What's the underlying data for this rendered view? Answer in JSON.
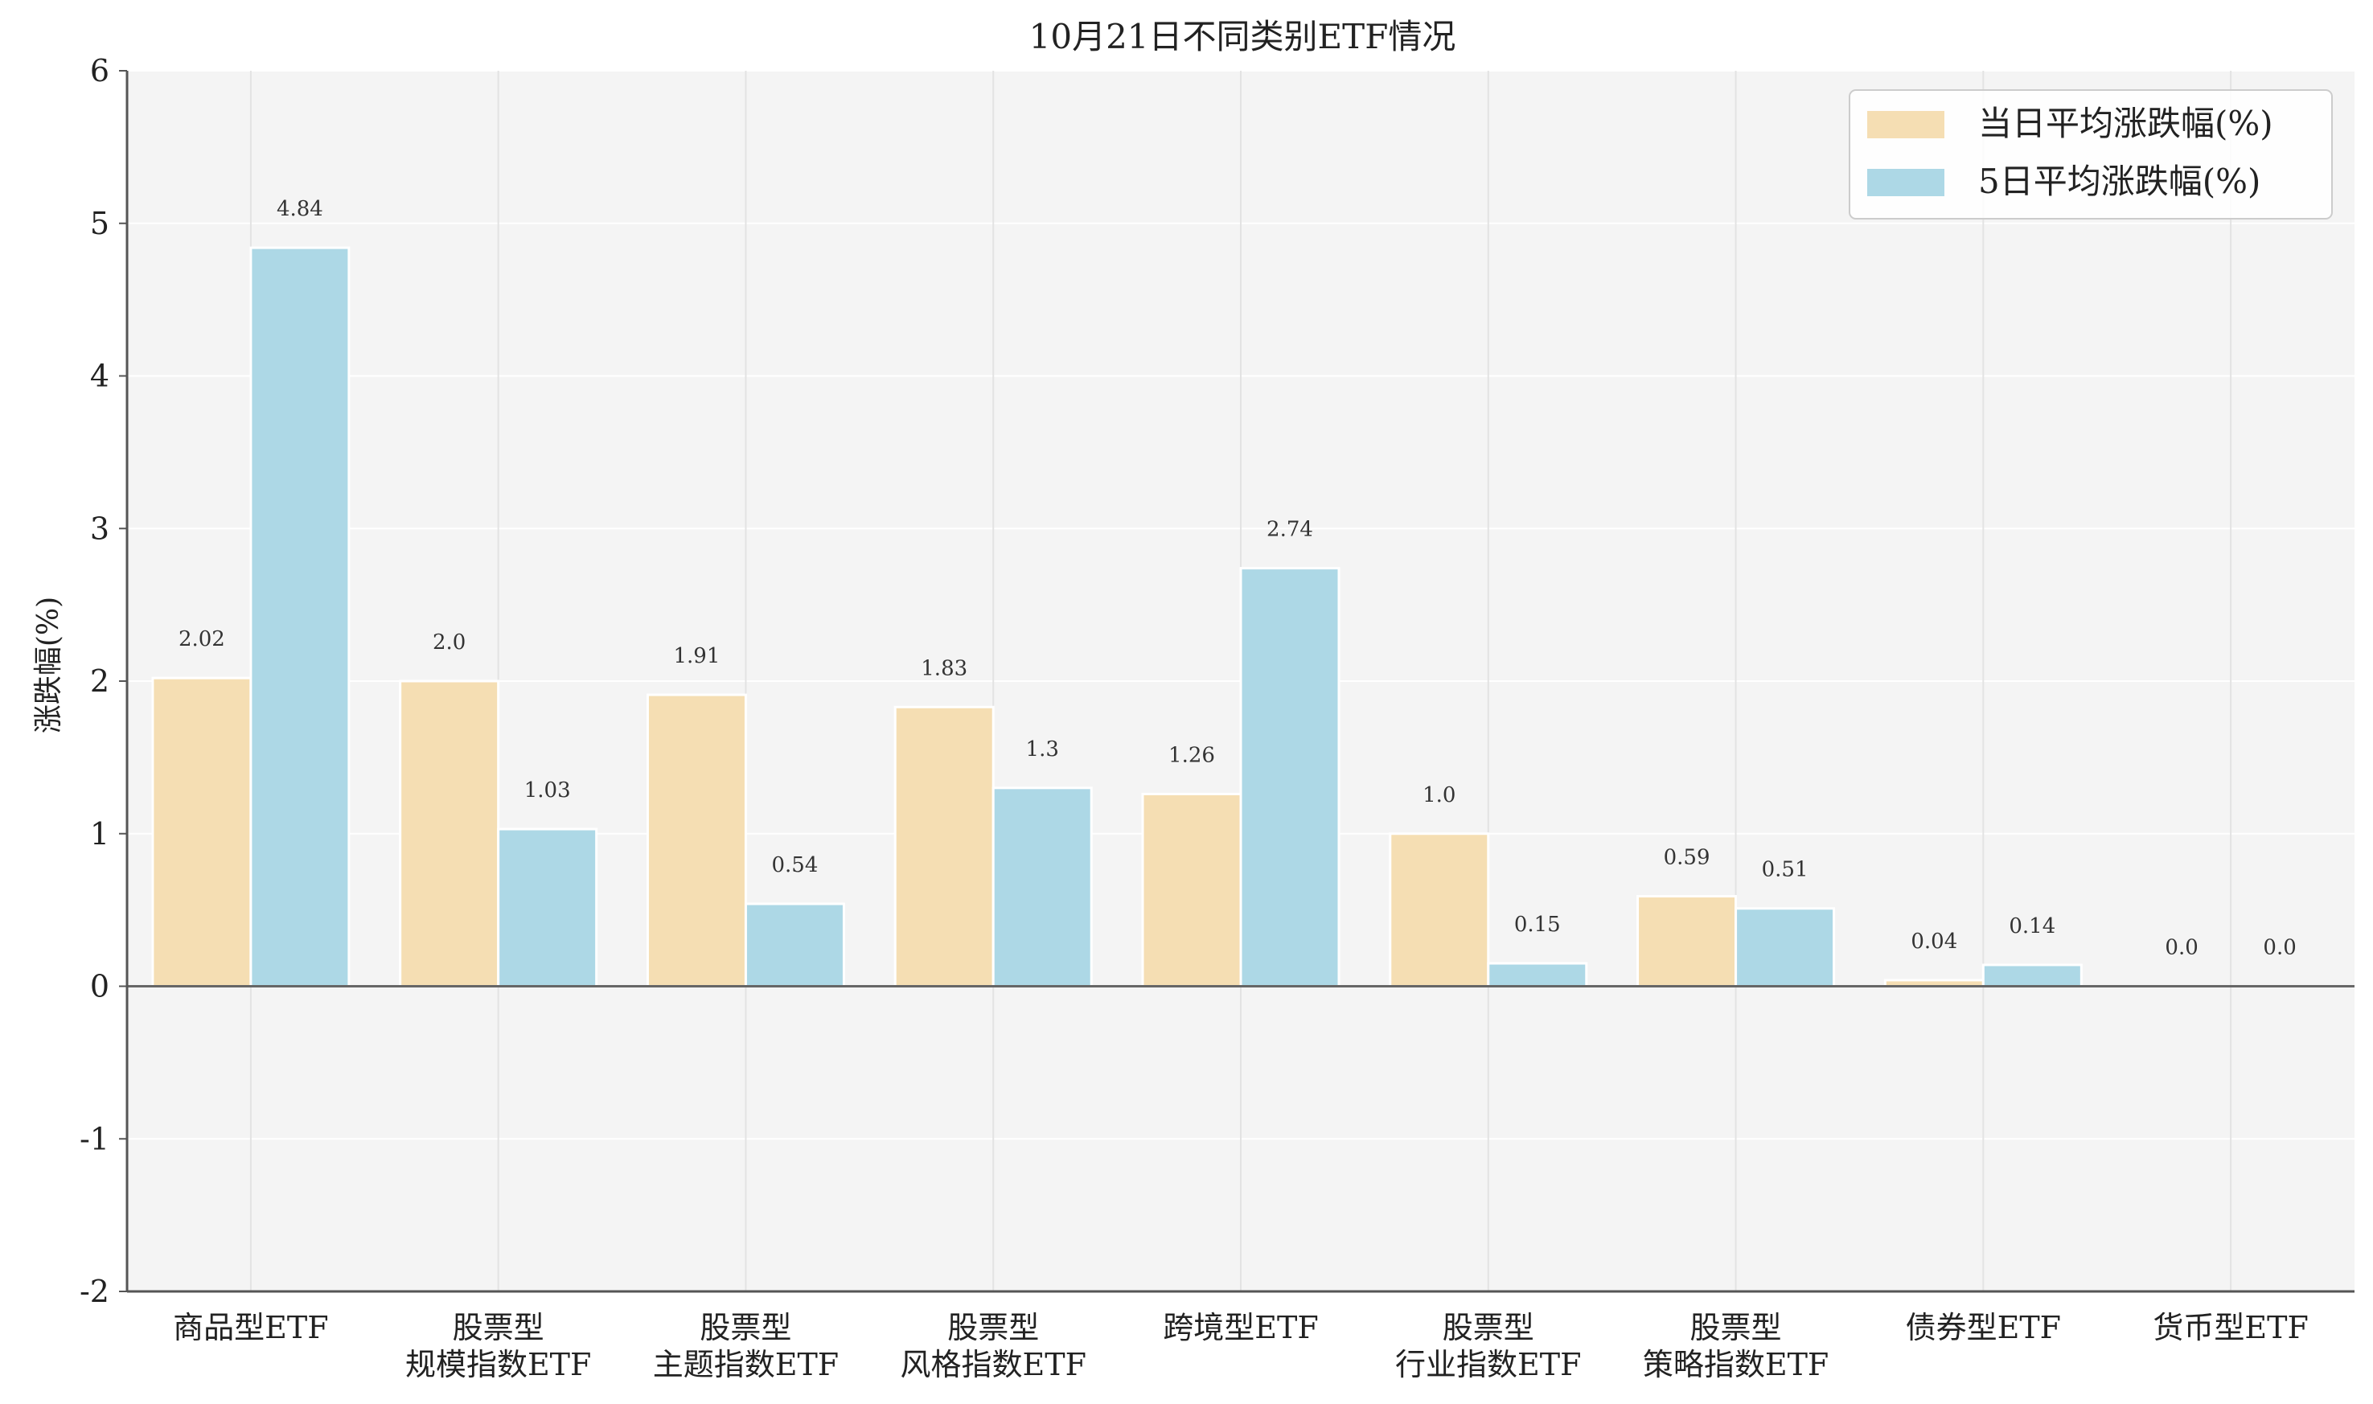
{
  "chart_data": {
    "type": "bar",
    "title": "10月21日不同类别ETF情况",
    "xlabel": "",
    "ylabel": "涨跌幅(%)",
    "ylim": [
      -2,
      6
    ],
    "yticks": [
      -2,
      -1,
      0,
      1,
      2,
      3,
      4,
      5,
      6
    ],
    "categories": [
      [
        "商品型ETF"
      ],
      [
        "股票型",
        "规模指数ETF"
      ],
      [
        "股票型",
        "主题指数ETF"
      ],
      [
        "股票型",
        "风格指数ETF"
      ],
      [
        "跨境型ETF"
      ],
      [
        "股票型",
        "行业指数ETF"
      ],
      [
        "股票型",
        "策略指数ETF"
      ],
      [
        "债券型ETF"
      ],
      [
        "货币型ETF"
      ]
    ],
    "series": [
      {
        "name": "当日平均涨跌幅(%)",
        "color": "#f5deb3",
        "values": [
          2.02,
          2.0,
          1.91,
          1.83,
          1.26,
          1.0,
          0.59,
          0.04,
          0.0
        ],
        "labels": [
          "2.02",
          "2.0",
          "1.91",
          "1.83",
          "1.26",
          "1.0",
          "0.59",
          "0.04",
          "0.0"
        ]
      },
      {
        "name": "5日平均涨跌幅(%)",
        "color": "#add8e6",
        "values": [
          4.84,
          1.03,
          0.54,
          1.3,
          2.74,
          0.15,
          0.51,
          0.14,
          0.0
        ],
        "labels": [
          "4.84",
          "1.03",
          "0.54",
          "1.3",
          "2.74",
          "0.15",
          "0.51",
          "0.14",
          "0.0"
        ]
      }
    ],
    "grid": true,
    "legend_position": "top-right",
    "colors": {
      "background": "#f4f4f4",
      "grid": "#ffffff",
      "vgrid": "#e3e3e3",
      "axis": "#555555",
      "zero_line": "#666666"
    }
  }
}
